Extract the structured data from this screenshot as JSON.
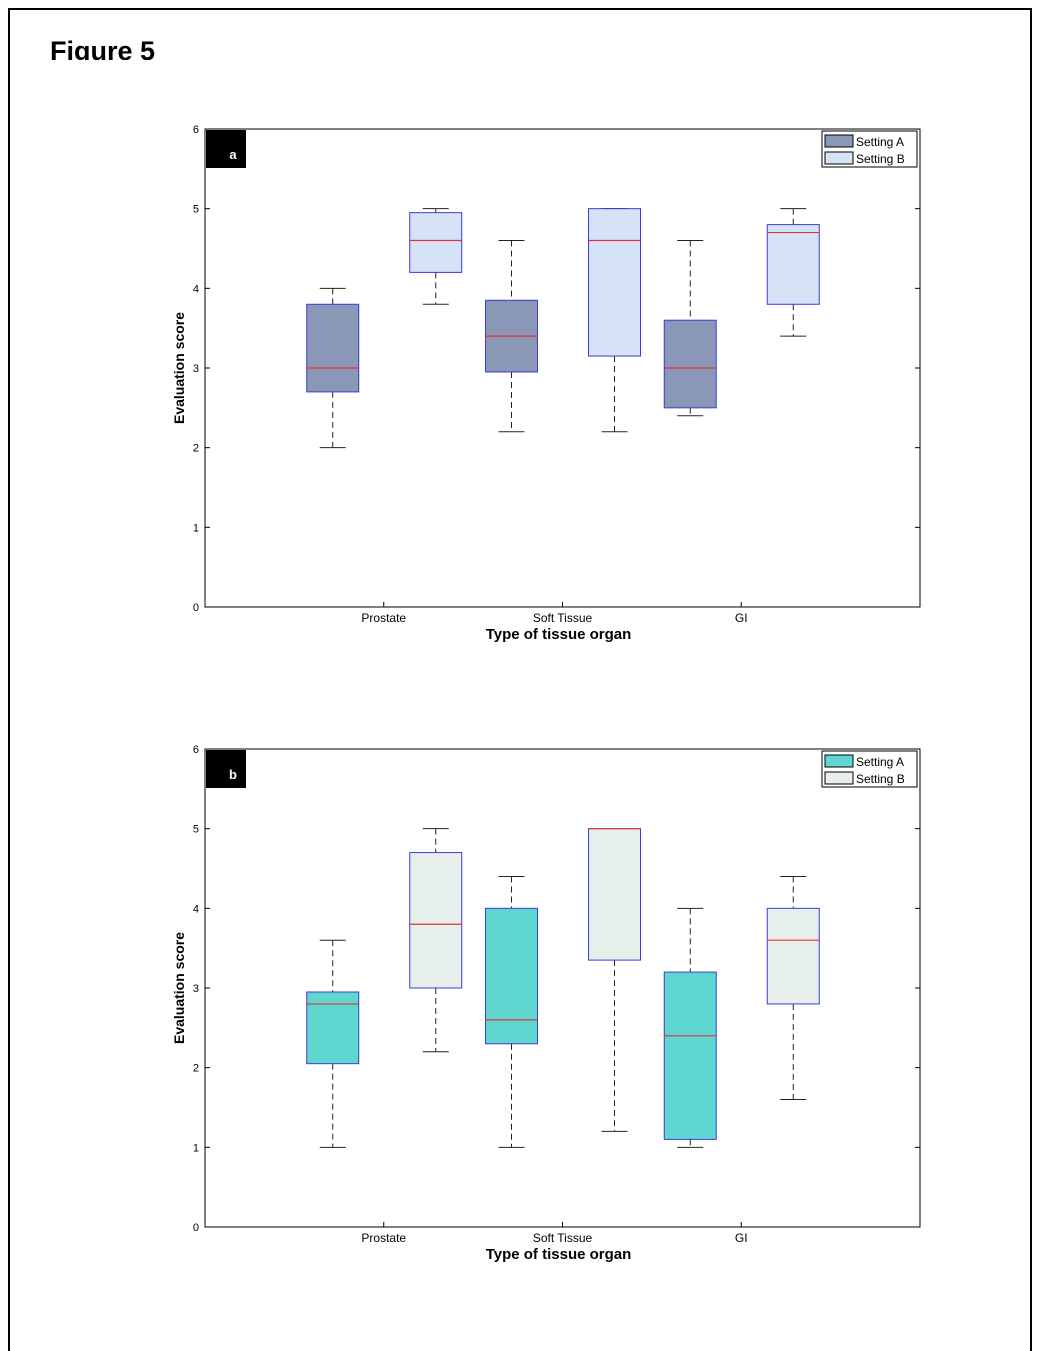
{
  "figure": {
    "title": "Figure 5"
  },
  "chart_data": [
    {
      "type": "boxplot",
      "panel_label": "a",
      "xlabel": "Type of tissue organ",
      "ylabel": "Evaluation score",
      "ylim": [
        0,
        6
      ],
      "yticks": [
        0,
        1,
        2,
        3,
        4,
        5,
        6
      ],
      "categories": [
        "Prostate",
        "Soft Tissue",
        "GI"
      ],
      "legend": {
        "position": "top-right"
      },
      "series": [
        {
          "name": "Setting A",
          "color": "#8a97b6",
          "boxes": [
            {
              "category": "Prostate",
              "min": 2.0,
              "q1": 2.7,
              "median": 3.0,
              "q3": 3.8,
              "max": 4.0
            },
            {
              "category": "Soft Tissue",
              "min": 2.2,
              "q1": 2.95,
              "median": 3.4,
              "q3": 3.85,
              "max": 4.6
            },
            {
              "category": "GI",
              "min": 2.4,
              "q1": 2.5,
              "median": 3.0,
              "q3": 3.6,
              "max": 4.6
            }
          ]
        },
        {
          "name": "Setting B",
          "color": "#d6e2f6",
          "boxes": [
            {
              "category": "Prostate",
              "min": 3.8,
              "q1": 4.2,
              "median": 4.6,
              "q3": 4.95,
              "max": 5.0
            },
            {
              "category": "Soft Tissue",
              "min": 2.2,
              "q1": 3.15,
              "median": 4.6,
              "q3": 5.0,
              "max": 5.0
            },
            {
              "category": "GI",
              "min": 3.4,
              "q1": 3.8,
              "median": 4.7,
              "q3": 4.8,
              "max": 5.0
            }
          ]
        }
      ]
    },
    {
      "type": "boxplot",
      "panel_label": "b",
      "xlabel": "Type of tissue organ",
      "ylabel": "Evaluation score",
      "ylim": [
        0,
        6
      ],
      "yticks": [
        0,
        1,
        2,
        3,
        4,
        5,
        6
      ],
      "categories": [
        "Prostate",
        "Soft Tissue",
        "GI"
      ],
      "legend": {
        "position": "top-right"
      },
      "series": [
        {
          "name": "Setting A",
          "color": "#5fd6cf",
          "boxes": [
            {
              "category": "Prostate",
              "min": 1.0,
              "q1": 2.05,
              "median": 2.8,
              "q3": 2.95,
              "max": 3.6
            },
            {
              "category": "Soft Tissue",
              "min": 1.0,
              "q1": 2.3,
              "median": 2.6,
              "q3": 4.0,
              "max": 4.4
            },
            {
              "category": "GI",
              "min": 1.0,
              "q1": 1.1,
              "median": 2.4,
              "q3": 3.2,
              "max": 4.0
            }
          ]
        },
        {
          "name": "Setting B",
          "color": "#e6efea",
          "boxes": [
            {
              "category": "Prostate",
              "min": 2.2,
              "q1": 3.0,
              "median": 3.8,
              "q3": 4.7,
              "max": 5.0
            },
            {
              "category": "Soft Tissue",
              "min": 1.2,
              "q1": 3.35,
              "median": 5.0,
              "q3": 5.0,
              "max": 5.0
            },
            {
              "category": "GI",
              "min": 1.6,
              "q1": 2.8,
              "median": 3.6,
              "q3": 4.0,
              "max": 4.4
            }
          ]
        }
      ]
    }
  ],
  "colors": {
    "box_border": "#3b3bd8",
    "median": "#e0343a",
    "whisker": "#222222"
  }
}
